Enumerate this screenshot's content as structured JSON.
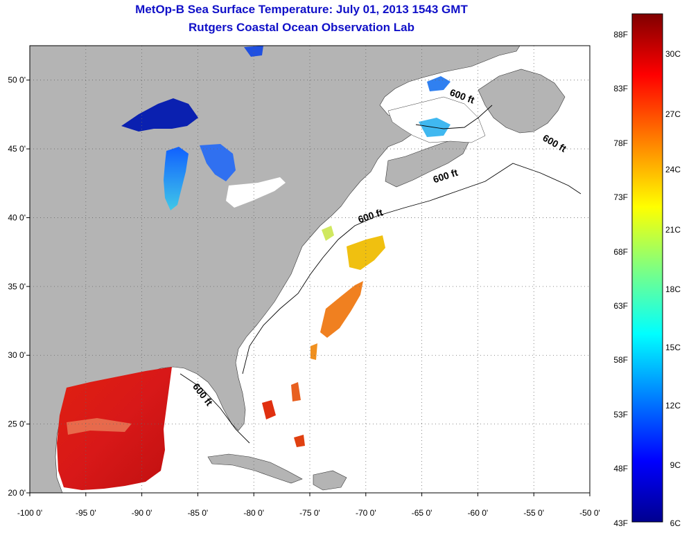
{
  "header": {
    "title": "MetOp-B Sea Surface Temperature:  July 01, 2013 1543 GMT",
    "subtitle": "Rutgers Coastal Ocean Observation Lab"
  },
  "map": {
    "lon_range": [
      -100,
      -50
    ],
    "lat_range": [
      20,
      52.5
    ],
    "lon_ticks": [
      {
        "value": -100,
        "label": "-100 0'"
      },
      {
        "value": -95,
        "label": "-95 0'"
      },
      {
        "value": -90,
        "label": "-90 0'"
      },
      {
        "value": -85,
        "label": "-85 0'"
      },
      {
        "value": -80,
        "label": "-80 0'"
      },
      {
        "value": -75,
        "label": "-75 0'"
      },
      {
        "value": -70,
        "label": "-70 0'"
      },
      {
        "value": -65,
        "label": "-65 0'"
      },
      {
        "value": -60,
        "label": "-60 0'"
      },
      {
        "value": -55,
        "label": "-55 0'"
      },
      {
        "value": -50,
        "label": "-50 0'"
      }
    ],
    "lat_ticks": [
      {
        "value": 20,
        "label": "20 0'"
      },
      {
        "value": 25,
        "label": "25 0'"
      },
      {
        "value": 30,
        "label": "30 0'"
      },
      {
        "value": 35,
        "label": "35 0'"
      },
      {
        "value": 40,
        "label": "40 0'"
      },
      {
        "value": 45,
        "label": "45 0'"
      },
      {
        "value": 50,
        "label": "50 0'"
      }
    ],
    "isobath_labels": [
      {
        "text": "600 ft",
        "lon": -61.5,
        "lat": 48.6
      },
      {
        "text": "600 ft",
        "lon": -53.3,
        "lat": 45.2
      },
      {
        "text": "600 ft",
        "lon": -62.8,
        "lat": 42.8
      },
      {
        "text": "600 ft",
        "lon": -69.5,
        "lat": 39.9
      },
      {
        "text": "600 ft",
        "lon": -84.8,
        "lat": 27.0
      }
    ],
    "land_color": "#b4b4b4",
    "ocean_color": "#ffffff"
  },
  "colorbar": {
    "f_labels": [
      "88F",
      "83F",
      "78F",
      "73F",
      "68F",
      "63F",
      "58F",
      "53F",
      "48F",
      "43F"
    ],
    "c_labels": [
      "30C",
      "27C",
      "24C",
      "21C",
      "18C",
      "15C",
      "12C",
      "9C",
      "6C"
    ],
    "colors": [
      "#00008f",
      "#0000ff",
      "#0080ff",
      "#00ffff",
      "#80ff80",
      "#ffff00",
      "#ff8000",
      "#ff0000",
      "#800000"
    ]
  }
}
